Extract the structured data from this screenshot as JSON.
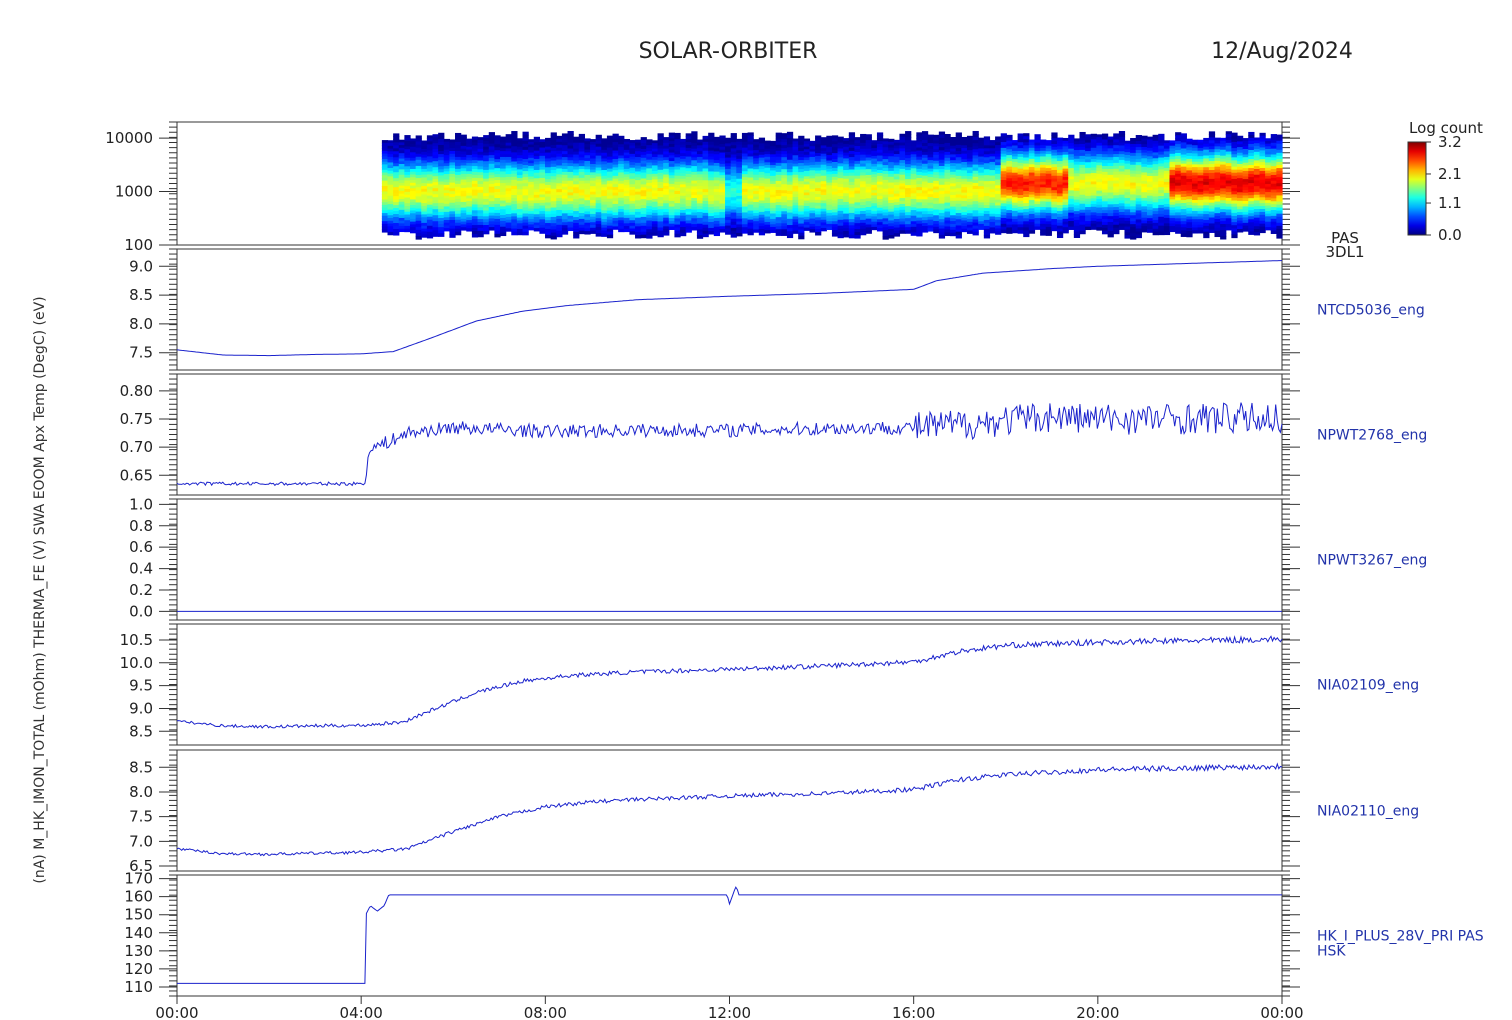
{
  "header": {
    "title": "SOLAR-ORBITER",
    "date": "12/Aug/2024"
  },
  "left_label": "(nA) M_HK_IMON_TOTAL (mOhm) THERMA_FE (V) SWA EOOM Apx Temp (DegC) (eV)",
  "colorbar": {
    "title": "Log count",
    "ticks": [
      "3.2",
      "2.1",
      "1.1",
      "0.0"
    ]
  },
  "chart_data": [
    {
      "type": "heatmap",
      "name": "PAS 3DL1",
      "label_lines": [
        "PAS",
        "3DL1"
      ],
      "y_ticks": [
        "10000",
        "1000",
        "100"
      ],
      "ylim": [
        100,
        20000
      ],
      "log_y": true,
      "data_start_hour": 4.45,
      "energy_peak_eV": 1000,
      "zlim": [
        0.0,
        3.2
      ]
    },
    {
      "type": "line",
      "name": "NTCD5036_eng",
      "label_lines": [
        "NTCD5036_eng"
      ],
      "y_ticks": [
        "9.0",
        "8.5",
        "8.0",
        "7.5"
      ],
      "ylim": [
        7.2,
        9.3
      ],
      "points": [
        [
          0,
          7.55
        ],
        [
          1,
          7.46
        ],
        [
          2,
          7.45
        ],
        [
          3,
          7.47
        ],
        [
          4,
          7.48
        ],
        [
          4.7,
          7.52
        ],
        [
          5.5,
          7.75
        ],
        [
          6.5,
          8.05
        ],
        [
          7.5,
          8.22
        ],
        [
          8.5,
          8.32
        ],
        [
          10,
          8.42
        ],
        [
          12,
          8.48
        ],
        [
          14,
          8.53
        ],
        [
          16,
          8.6
        ],
        [
          16.5,
          8.75
        ],
        [
          17.5,
          8.88
        ],
        [
          19,
          8.96
        ],
        [
          20,
          9.0
        ],
        [
          22,
          9.05
        ],
        [
          24,
          9.1
        ]
      ]
    },
    {
      "type": "line",
      "name": "NPWT2768_eng",
      "label_lines": [
        "NPWT2768_eng"
      ],
      "y_ticks": [
        "0.80",
        "0.75",
        "0.70",
        "0.65"
      ],
      "ylim": [
        0.615,
        0.83
      ],
      "points": [
        [
          0,
          0.635
        ],
        [
          4.1,
          0.635
        ],
        [
          4.15,
          0.695
        ],
        [
          4.6,
          0.71
        ],
        [
          5,
          0.725
        ],
        [
          6,
          0.735
        ],
        [
          8,
          0.728
        ],
        [
          10,
          0.73
        ],
        [
          12,
          0.73
        ],
        [
          14,
          0.733
        ],
        [
          16,
          0.735
        ],
        [
          17,
          0.74
        ],
        [
          19,
          0.755
        ],
        [
          20,
          0.75
        ],
        [
          24,
          0.752
        ]
      ],
      "noise": [
        [
          0,
          0.003
        ],
        [
          4.1,
          0.003
        ],
        [
          4.15,
          0.012
        ],
        [
          16,
          0.012
        ],
        [
          16.05,
          0.028
        ],
        [
          24,
          0.028
        ]
      ]
    },
    {
      "type": "line",
      "name": "NPWT3267_eng",
      "label_lines": [
        "NPWT3267_eng"
      ],
      "y_ticks": [
        "1.0",
        "0.8",
        "0.6",
        "0.4",
        "0.2",
        "0.0"
      ],
      "ylim": [
        -0.08,
        1.05
      ],
      "points": [
        [
          0,
          0.0
        ],
        [
          24,
          0.0
        ]
      ]
    },
    {
      "type": "line",
      "name": "NIA02109_eng",
      "label_lines": [
        "NIA02109_eng"
      ],
      "y_ticks": [
        "10.5",
        "10.0",
        "9.5",
        "9.0",
        "8.5"
      ],
      "ylim": [
        8.2,
        10.85
      ],
      "points": [
        [
          0,
          8.72
        ],
        [
          1,
          8.62
        ],
        [
          2,
          8.6
        ],
        [
          3,
          8.62
        ],
        [
          4,
          8.63
        ],
        [
          4.9,
          8.7
        ],
        [
          5.5,
          8.95
        ],
        [
          6.5,
          9.35
        ],
        [
          7.5,
          9.6
        ],
        [
          8.5,
          9.72
        ],
        [
          10,
          9.8
        ],
        [
          12,
          9.86
        ],
        [
          14,
          9.93
        ],
        [
          16,
          10.02
        ],
        [
          17,
          10.25
        ],
        [
          18,
          10.38
        ],
        [
          20,
          10.45
        ],
        [
          24,
          10.52
        ]
      ],
      "noise": [
        [
          0,
          0.03
        ],
        [
          24,
          0.07
        ]
      ]
    },
    {
      "type": "line",
      "name": "NIA02110_eng",
      "label_lines": [
        "NIA02110_eng"
      ],
      "y_ticks": [
        "8.5",
        "8.0",
        "7.5",
        "7.0",
        "6.5"
      ],
      "ylim": [
        6.4,
        8.85
      ],
      "points": [
        [
          0,
          6.85
        ],
        [
          1,
          6.75
        ],
        [
          2,
          6.74
        ],
        [
          3,
          6.76
        ],
        [
          4,
          6.78
        ],
        [
          5,
          6.85
        ],
        [
          6,
          7.2
        ],
        [
          7,
          7.5
        ],
        [
          8,
          7.7
        ],
        [
          9,
          7.8
        ],
        [
          10,
          7.85
        ],
        [
          12,
          7.92
        ],
        [
          14,
          7.97
        ],
        [
          16,
          8.05
        ],
        [
          17,
          8.25
        ],
        [
          18,
          8.35
        ],
        [
          20,
          8.45
        ],
        [
          24,
          8.52
        ]
      ],
      "noise": [
        [
          0,
          0.025
        ],
        [
          24,
          0.06
        ]
      ]
    },
    {
      "type": "line",
      "name": "HK_I_PLUS_28V_PRI",
      "label_lines": [
        "HK_I_PLUS_28V_PRI PAS",
        "HSK"
      ],
      "y_ticks": [
        "170",
        "160",
        "150",
        "140",
        "130",
        "120",
        "110"
      ],
      "ylim": [
        105,
        172
      ],
      "points": [
        [
          0,
          112
        ],
        [
          4.08,
          112
        ],
        [
          4.1,
          150
        ],
        [
          4.2,
          155
        ],
        [
          4.35,
          152
        ],
        [
          4.5,
          155
        ],
        [
          4.6,
          161
        ],
        [
          11.95,
          161
        ],
        [
          12.0,
          156
        ],
        [
          12.1,
          163
        ],
        [
          12.15,
          166
        ],
        [
          12.2,
          161
        ],
        [
          24,
          161
        ]
      ]
    }
  ],
  "x_axis": {
    "ticks": [
      "00:00",
      "04:00",
      "08:00",
      "12:00",
      "16:00",
      "20:00",
      "00:00"
    ],
    "xlim": [
      0,
      24
    ]
  }
}
